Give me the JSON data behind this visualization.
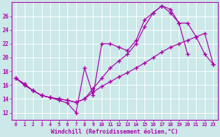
{
  "bg_color": "#cce8e8",
  "grid_color": "#b0d8d8",
  "line_color": "#aa00aa",
  "marker": "+",
  "markersize": 4,
  "linewidth": 0.9,
  "xlabel": "Windchill (Refroidissement éolien,°C)",
  "xlabel_fontsize": 6,
  "xtick_fontsize": 5,
  "ytick_fontsize": 5.5,
  "xlim": [
    -0.5,
    23.5
  ],
  "ylim": [
    11.0,
    28.0
  ],
  "yticks": [
    12,
    14,
    16,
    18,
    20,
    22,
    24,
    26
  ],
  "xticks": [
    0,
    1,
    2,
    3,
    4,
    5,
    6,
    7,
    8,
    9,
    10,
    11,
    12,
    13,
    14,
    15,
    16,
    17,
    18,
    19,
    20,
    21,
    22,
    23
  ],
  "line1_x": [
    0,
    1,
    2,
    3,
    4,
    5,
    6,
    7,
    8,
    9,
    10,
    11,
    12,
    13,
    14,
    15,
    16,
    17,
    18,
    19,
    20
  ],
  "line1_y": [
    17.0,
    16.0,
    15.2,
    14.5,
    14.2,
    13.8,
    13.4,
    12.0,
    18.5,
    14.5,
    22.0,
    22.0,
    21.5,
    21.0,
    22.5,
    25.5,
    26.5,
    27.5,
    27.0,
    25.0,
    20.5
  ],
  "line2_x": [
    0,
    1,
    2,
    3,
    4,
    5,
    6,
    7,
    8,
    9,
    10,
    11,
    12,
    13,
    14,
    15,
    16,
    17,
    18,
    19,
    20,
    21,
    22,
    23
  ],
  "line2_y": [
    17.0,
    16.2,
    15.2,
    14.5,
    14.2,
    14.0,
    13.8,
    13.5,
    14.0,
    15.0,
    15.8,
    16.5,
    17.2,
    17.8,
    18.5,
    19.2,
    20.0,
    20.8,
    21.5,
    22.0,
    22.5,
    23.0,
    23.5,
    19.0
  ],
  "line3_x": [
    0,
    1,
    2,
    3,
    4,
    5,
    6,
    7,
    8,
    9,
    10,
    11,
    12,
    13,
    14,
    15,
    16,
    17,
    18,
    19,
    20,
    21,
    22,
    23
  ],
  "line3_y": [
    17.0,
    16.0,
    15.2,
    14.5,
    14.2,
    14.0,
    13.8,
    13.5,
    14.0,
    15.5,
    17.0,
    18.5,
    19.5,
    20.5,
    22.0,
    24.5,
    26.5,
    27.5,
    26.5,
    25.0,
    25.0,
    23.0,
    20.5,
    19.0
  ]
}
